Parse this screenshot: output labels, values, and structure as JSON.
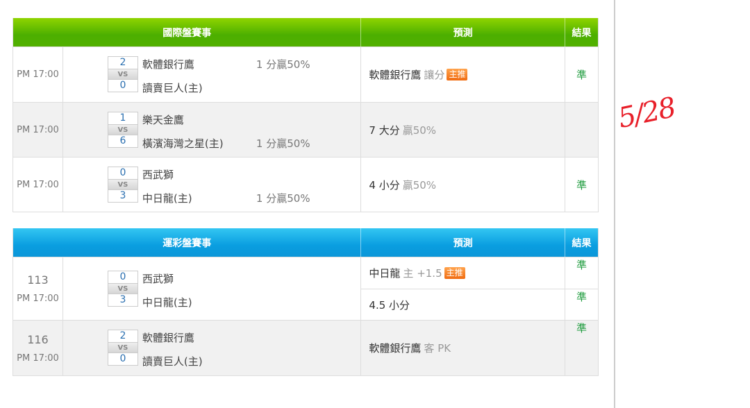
{
  "intl": {
    "header": {
      "event": "國際盤賽事",
      "prediction": "預測",
      "result": "結果"
    },
    "rows": [
      {
        "time": "PM 17:00",
        "score_top": "2",
        "vs": "VS",
        "score_bottom": "0",
        "team_top": "軟體銀行鷹",
        "team_bottom": "讀賣巨人(主)",
        "handicap": "1 分贏50%",
        "handicap_pos": "top",
        "pred_main": "軟體銀行鷹",
        "pred_sub": "讓分",
        "badge": "主推",
        "result": "準"
      },
      {
        "time": "PM 17:00",
        "score_top": "1",
        "vs": "VS",
        "score_bottom": "6",
        "team_top": "樂天金鷹",
        "team_bottom": "橫濱海灣之星(主)",
        "handicap": "1 分贏50%",
        "handicap_pos": "bottom",
        "pred_main": "7 大分",
        "pred_sub": "贏50%",
        "badge": "",
        "result": ""
      },
      {
        "time": "PM 17:00",
        "score_top": "0",
        "vs": "VS",
        "score_bottom": "3",
        "team_top": "西武獅",
        "team_bottom": "中日龍(主)",
        "handicap": "1 分贏50%",
        "handicap_pos": "bottom",
        "pred_main": "4 小分",
        "pred_sub": "贏50%",
        "badge": "",
        "result": "準"
      }
    ]
  },
  "sports": {
    "header": {
      "event": "運彩盤賽事",
      "prediction": "預測",
      "result": "結果"
    },
    "rows": [
      {
        "num": "113",
        "time": "PM 17:00",
        "score_top": "0",
        "vs": "VS",
        "score_bottom": "3",
        "team_top": "西武獅",
        "team_bottom": "中日龍(主)",
        "preds": [
          {
            "main": "中日龍",
            "sub": "主 +1.5",
            "badge": "主推",
            "result": "準"
          },
          {
            "main": "4.5 小分",
            "sub": "",
            "badge": "",
            "result": "準"
          }
        ]
      },
      {
        "num": "116",
        "time": "PM 17:00",
        "score_top": "2",
        "vs": "VS",
        "score_bottom": "0",
        "team_top": "軟體銀行鷹",
        "team_bottom": "讀賣巨人(主)",
        "preds": [
          {
            "main": "軟體銀行鷹",
            "sub": "客 PK",
            "badge": "",
            "result": "準"
          }
        ]
      }
    ]
  },
  "annotation": {
    "text": "5/28",
    "color": "#e8202a"
  },
  "colors": {
    "green_header": "#4caf00",
    "blue_header": "#0a9ee0",
    "result": "#1a9a3a",
    "badge": "#f06b10"
  }
}
